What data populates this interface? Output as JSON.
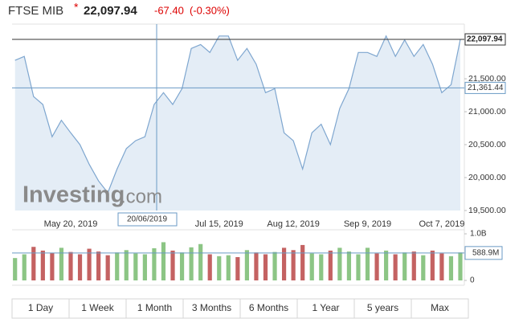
{
  "header": {
    "name": "FTSE MIB",
    "marker": "*",
    "price": "22,097.94",
    "change": "-67.40",
    "change_pct": "(-0.30%)"
  },
  "chart_data": [
    {
      "type": "line",
      "color": "#7ea6cf",
      "fill": "#e4edf6",
      "watermark": {
        "brand": "Investing",
        "suffix": ".com"
      },
      "categories": [
        null,
        null,
        null,
        null,
        null,
        null,
        "May 20, 2019",
        null,
        null,
        null,
        null,
        null,
        null,
        null,
        null,
        null,
        null,
        null,
        null,
        null,
        null,
        null,
        "Jul 15, 2019",
        null,
        null,
        null,
        null,
        null,
        null,
        null,
        "Aug 12, 2019",
        null,
        null,
        null,
        null,
        null,
        null,
        null,
        "Sep 9, 2019",
        null,
        null,
        null,
        null,
        null,
        null,
        null,
        "Oct 7, 2019",
        null,
        null
      ],
      "values": [
        21780,
        21840,
        21230,
        21110,
        20620,
        20870,
        20680,
        20500,
        20200,
        19950,
        19770,
        20130,
        20440,
        20560,
        20620,
        21110,
        21290,
        21110,
        21350,
        21960,
        22020,
        21900,
        22150,
        22150,
        21780,
        21960,
        21720,
        21290,
        21350,
        20680,
        20560,
        20130,
        20680,
        20810,
        20500,
        21050,
        21350,
        21900,
        21900,
        21840,
        22150,
        21840,
        22090,
        21840,
        22020,
        21720,
        21290,
        21410,
        22097.94
      ],
      "ylim": [
        19500,
        22330
      ],
      "yticks": [
        {
          "value": 19500,
          "label": "19,500.00"
        },
        {
          "value": 20000,
          "label": "20,000.00"
        },
        {
          "value": 20500,
          "label": "20,500.00"
        },
        {
          "value": 21000,
          "label": "21,000.00"
        },
        {
          "value": 21500,
          "label": "21,500.00"
        }
      ],
      "last": {
        "value": 22097.94,
        "label": "22,097.94"
      },
      "crosshair": {
        "date": "20/06/2019",
        "value": 21361.44,
        "label": "21,361.44"
      },
      "grid": false
    },
    {
      "type": "bar",
      "up_color": "#8cc585",
      "down_color": "#c46262",
      "values": [
        480000000,
        560000000,
        720000000,
        640000000,
        590000000,
        700000000,
        610000000,
        560000000,
        680000000,
        620000000,
        540000000,
        600000000,
        650000000,
        580000000,
        560000000,
        690000000,
        820000000,
        640000000,
        600000000,
        710000000,
        780000000,
        560000000,
        520000000,
        540000000,
        500000000,
        650000000,
        600000000,
        560000000,
        610000000,
        700000000,
        650000000,
        760000000,
        580000000,
        560000000,
        640000000,
        700000000,
        620000000,
        560000000,
        700000000,
        580000000,
        640000000,
        560000000,
        600000000,
        620000000,
        540000000,
        640000000,
        580000000,
        520000000,
        600000000
      ],
      "ylim": [
        0,
        1000000000
      ],
      "yticks": [
        0,
        {
          "value": 1000000000,
          "label": "1.0B"
        }
      ],
      "crosshair": {
        "value": 588900000,
        "label": "588.9M"
      }
    }
  ],
  "range_buttons": [
    "1 Day",
    "1 Week",
    "1 Month",
    "3 Months",
    "6 Months",
    "1 Year",
    "5 years",
    "Max"
  ]
}
